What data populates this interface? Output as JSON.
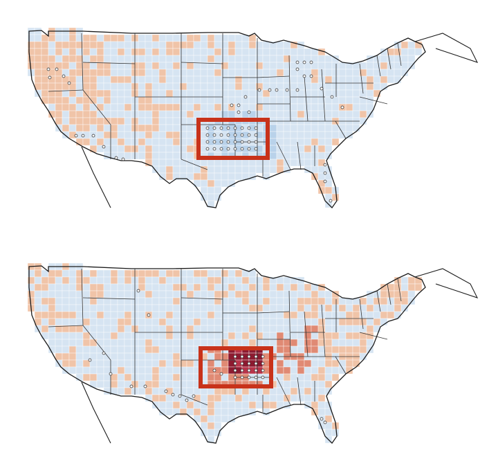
{
  "figure": {
    "panels": [
      {
        "id": "top",
        "description_colors": {
          "land_base": "#d6e4f2",
          "warm_cell": "#f0c4a8",
          "cool_cell": "#b9d2ea",
          "highlight_box": "#c8321a",
          "stipple_dot": "#ffffff"
        }
      },
      {
        "id": "bottom",
        "description_colors": {
          "land_base": "#d6e4f2",
          "warm_cell": "#f0c4a8",
          "mid_warm_cell": "#e08a74",
          "hot_cell": "#b8344a",
          "hottest_cell": "#8c1a30",
          "highlight_box": "#c8321a",
          "stipple_dot": "#ffffff"
        }
      }
    ]
  },
  "colors": {
    "outline": "#1a1a1a",
    "state_line": "#333333",
    "grid_line": "#ffffff"
  }
}
